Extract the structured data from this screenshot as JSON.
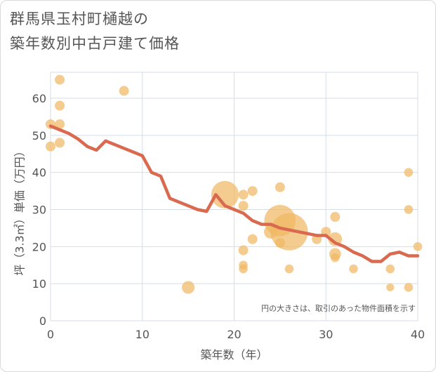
{
  "title": {
    "line1": "群馬県玉村町樋越の",
    "line2": "築年数別中古戸建て価格"
  },
  "chart_data": {
    "type": "scatter",
    "xlabel": "築年数（年）",
    "ylabel": "坪（3.3㎡）単価（万円）",
    "xlim": [
      0,
      40
    ],
    "ylim": [
      0,
      67
    ],
    "xticks": [
      0,
      10,
      20,
      30,
      40
    ],
    "yticks": [
      0,
      10,
      20,
      30,
      40,
      50,
      60
    ],
    "grid": true,
    "note": "円の大きさは、取引のあった物件面積を示す",
    "colors": {
      "bubble": "#f0b964",
      "line": "#d9694f",
      "grid": "#d5dde5",
      "plot_bg": "#ffffff"
    },
    "bubbles": [
      {
        "x": 0,
        "y": 53,
        "s": 1
      },
      {
        "x": 0,
        "y": 47,
        "s": 1
      },
      {
        "x": 1,
        "y": 65,
        "s": 1
      },
      {
        "x": 1,
        "y": 58,
        "s": 1
      },
      {
        "x": 1,
        "y": 53,
        "s": 1
      },
      {
        "x": 1,
        "y": 48,
        "s": 1
      },
      {
        "x": 8,
        "y": 62,
        "s": 1
      },
      {
        "x": 15,
        "y": 9,
        "s": 1.3
      },
      {
        "x": 19,
        "y": 34,
        "s": 2.8
      },
      {
        "x": 21,
        "y": 34,
        "s": 1
      },
      {
        "x": 21,
        "y": 31,
        "s": 1
      },
      {
        "x": 21,
        "y": 19,
        "s": 1
      },
      {
        "x": 21,
        "y": 15,
        "s": 0.9
      },
      {
        "x": 21,
        "y": 14,
        "s": 0.9
      },
      {
        "x": 22,
        "y": 35,
        "s": 1
      },
      {
        "x": 22,
        "y": 22,
        "s": 1
      },
      {
        "x": 24,
        "y": 24,
        "s": 1.4
      },
      {
        "x": 25,
        "y": 36,
        "s": 1
      },
      {
        "x": 25,
        "y": 27,
        "s": 3.2
      },
      {
        "x": 25,
        "y": 21,
        "s": 1
      },
      {
        "x": 26,
        "y": 24,
        "s": 3.8
      },
      {
        "x": 26,
        "y": 14,
        "s": 0.9
      },
      {
        "x": 29,
        "y": 22,
        "s": 1
      },
      {
        "x": 30,
        "y": 24,
        "s": 1
      },
      {
        "x": 31,
        "y": 28,
        "s": 1
      },
      {
        "x": 31,
        "y": 22,
        "s": 1.4
      },
      {
        "x": 31,
        "y": 18,
        "s": 1.2
      },
      {
        "x": 31,
        "y": 17,
        "s": 0.9
      },
      {
        "x": 33,
        "y": 14,
        "s": 0.9
      },
      {
        "x": 37,
        "y": 14,
        "s": 0.9
      },
      {
        "x": 37,
        "y": 9,
        "s": 0.8
      },
      {
        "x": 39,
        "y": 40,
        "s": 0.9
      },
      {
        "x": 39,
        "y": 30,
        "s": 0.9
      },
      {
        "x": 39,
        "y": 9,
        "s": 0.9
      },
      {
        "x": 40,
        "y": 20,
        "s": 0.9
      }
    ],
    "trend": {
      "x": [
        0,
        1,
        2,
        3,
        4,
        5,
        6,
        7,
        8,
        9,
        10,
        11,
        12,
        13,
        14,
        15,
        16,
        17,
        18,
        19,
        20,
        21,
        22,
        23,
        24,
        25,
        26,
        27,
        28,
        29,
        30,
        31,
        32,
        33,
        34,
        35,
        36,
        37,
        38,
        39,
        40
      ],
      "y": [
        52.5,
        51.5,
        50.5,
        49,
        47,
        46,
        48.5,
        47.5,
        46.5,
        45.5,
        44.5,
        40,
        39,
        33,
        32,
        31,
        30,
        29.5,
        34,
        31,
        30,
        29,
        27,
        26,
        26,
        25,
        24.5,
        24,
        23.5,
        23,
        23,
        21,
        20,
        18.5,
        17.5,
        16,
        16,
        18,
        18.5,
        17.5,
        17.5
      ]
    }
  }
}
